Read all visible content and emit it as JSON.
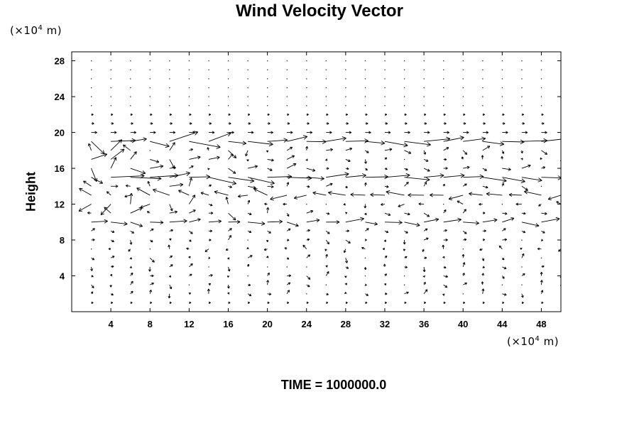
{
  "chart_data": {
    "type": "vector_field",
    "title": "Wind Velocity Vector",
    "xlabel": "",
    "ylabel": "Height",
    "x_unit": "(×10⁴ m)",
    "y_unit": "(×10⁴ m)",
    "xlim": [
      0,
      50
    ],
    "ylim": [
      0,
      29
    ],
    "x_ticks": [
      "4",
      "8",
      "12",
      "16",
      "20",
      "24",
      "28",
      "32",
      "36",
      "40",
      "44",
      "48"
    ],
    "y_ticks": [
      "4",
      "8",
      "12",
      "16",
      "20",
      "24",
      "28"
    ],
    "grid": false,
    "annotation": "TIME = 1000000.0",
    "sample_grid": {
      "x_start": 2,
      "x_step": 2,
      "x_count": 25,
      "y_start": 1,
      "y_step": 1,
      "y_count": 28
    },
    "features": [
      {
        "description": "eastward jet",
        "center_height": 19.1,
        "direction": "east"
      },
      {
        "description": "eastward jet",
        "center_height": 15.0,
        "direction": "east"
      },
      {
        "description": "westward jet",
        "center_height": 12.8,
        "direction": "west"
      },
      {
        "description": "eastward jet",
        "center_height": 10.0,
        "direction": "east"
      },
      {
        "description": "turbulent region",
        "x_range": [
          0,
          30
        ],
        "height_range": [
          10,
          20
        ]
      }
    ]
  }
}
